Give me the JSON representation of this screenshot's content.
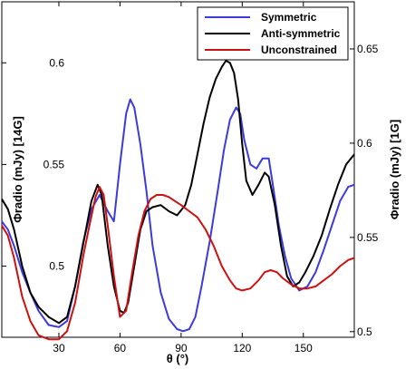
{
  "chart_data": {
    "type": "line",
    "xlabel": "θ (°)",
    "ylabel_left": "Φradio (mJy) [14G]",
    "ylabel_right": "Φradio (mJy) [1G]",
    "xlim": [
      2,
      175
    ],
    "ylim_left": [
      0.465,
      0.63
    ],
    "ylim_right": [
      0.497,
      0.675
    ],
    "x_ticks": [
      30,
      60,
      90,
      120,
      150
    ],
    "y_ticks_left": [
      0.5,
      0.55,
      0.6
    ],
    "y_ticks_right": [
      0.5,
      0.55,
      0.6,
      0.65
    ],
    "legend_position": "top-right",
    "series": [
      {
        "name": "Symmetric",
        "color": "#3b3bdd",
        "axis": "left",
        "x": [
          2,
          5,
          8,
          12,
          16,
          20,
          25,
          30,
          34,
          38,
          42,
          46,
          50,
          54,
          57,
          60,
          63,
          65,
          67,
          70,
          73,
          76,
          80,
          84,
          88,
          91,
          94,
          97,
          100,
          104,
          108,
          111,
          114,
          117,
          119,
          121,
          124,
          127,
          130,
          133,
          135,
          138,
          141,
          144,
          148,
          152,
          156,
          160,
          164,
          168,
          172,
          175
        ],
        "y": [
          0.522,
          0.518,
          0.51,
          0.497,
          0.487,
          0.478,
          0.471,
          0.47,
          0.473,
          0.49,
          0.512,
          0.528,
          0.535,
          0.527,
          0.522,
          0.55,
          0.575,
          0.582,
          0.578,
          0.56,
          0.537,
          0.51,
          0.487,
          0.474,
          0.469,
          0.468,
          0.469,
          0.475,
          0.49,
          0.512,
          0.537,
          0.557,
          0.572,
          0.578,
          0.575,
          0.562,
          0.55,
          0.548,
          0.553,
          0.553,
          0.54,
          0.52,
          0.505,
          0.494,
          0.488,
          0.49,
          0.497,
          0.508,
          0.52,
          0.532,
          0.539,
          0.54
        ]
      },
      {
        "name": "Anti-symmetric",
        "color": "#000000",
        "axis": "left",
        "x": [
          2,
          5,
          8,
          12,
          16,
          20,
          25,
          30,
          34,
          38,
          42,
          46,
          49,
          51,
          54,
          57,
          60,
          62,
          64,
          67,
          70,
          73,
          76,
          80,
          84,
          88,
          92,
          95,
          98,
          101,
          104,
          107,
          110,
          112,
          114,
          116,
          118,
          120,
          122,
          125,
          128,
          131,
          133,
          136,
          139,
          142,
          145,
          148,
          151,
          155,
          159,
          163,
          167,
          171,
          175
        ],
        "y": [
          0.533,
          0.528,
          0.518,
          0.5,
          0.487,
          0.48,
          0.475,
          0.472,
          0.475,
          0.49,
          0.511,
          0.532,
          0.54,
          0.535,
          0.51,
          0.49,
          0.478,
          0.477,
          0.482,
          0.5,
          0.518,
          0.527,
          0.529,
          0.53,
          0.527,
          0.525,
          0.53,
          0.54,
          0.555,
          0.57,
          0.583,
          0.592,
          0.598,
          0.601,
          0.6,
          0.595,
          0.582,
          0.56,
          0.542,
          0.535,
          0.54,
          0.546,
          0.544,
          0.53,
          0.51,
          0.495,
          0.49,
          0.492,
          0.497,
          0.505,
          0.515,
          0.528,
          0.54,
          0.55,
          0.555
        ]
      },
      {
        "name": "Unconstrained",
        "color": "#cc1111",
        "axis": "left",
        "x": [
          2,
          5,
          8,
          12,
          16,
          20,
          25,
          30,
          34,
          38,
          42,
          45,
          48,
          50,
          52,
          54,
          57,
          60,
          63,
          66,
          69,
          72,
          75,
          78,
          81,
          84,
          87,
          90,
          94,
          98,
          102,
          106,
          110,
          114,
          117,
          120,
          124,
          128,
          131,
          134,
          137,
          140,
          144,
          148,
          152,
          156,
          160,
          164,
          168,
          172,
          175
        ],
        "y": [
          0.52,
          0.515,
          0.504,
          0.485,
          0.473,
          0.466,
          0.464,
          0.464,
          0.468,
          0.482,
          0.505,
          0.52,
          0.534,
          0.539,
          0.535,
          0.52,
          0.495,
          0.475,
          0.478,
          0.497,
          0.515,
          0.527,
          0.533,
          0.535,
          0.535,
          0.534,
          0.532,
          0.53,
          0.527,
          0.524,
          0.518,
          0.51,
          0.5,
          0.493,
          0.489,
          0.488,
          0.489,
          0.493,
          0.497,
          0.498,
          0.497,
          0.494,
          0.491,
          0.489,
          0.489,
          0.49,
          0.493,
          0.496,
          0.5,
          0.503,
          0.504
        ]
      }
    ]
  }
}
